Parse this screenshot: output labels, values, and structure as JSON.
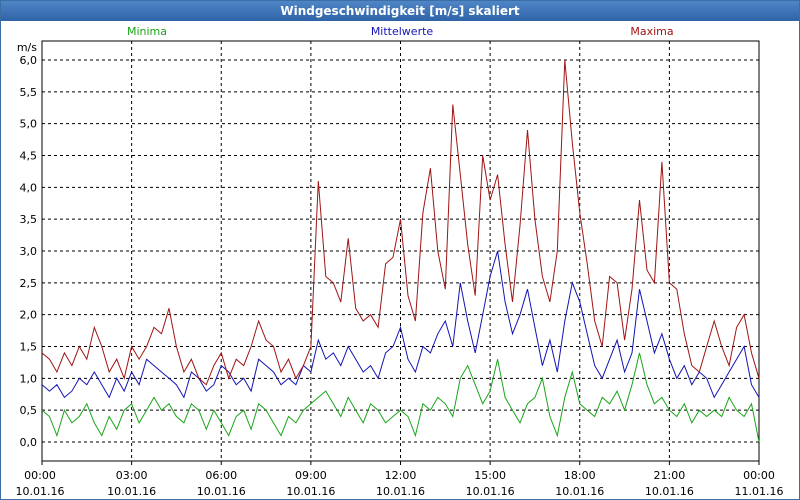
{
  "window": {
    "title": "Windgeschwindigkeit [m/s] skaliert"
  },
  "chart_data": {
    "type": "line",
    "title": "Windgeschwindigkeit [m/s] skaliert",
    "ylabel": "m/s",
    "xlabel": "",
    "ylim": [
      0,
      6
    ],
    "yticks": [
      "0,0",
      "0,5",
      "1,0",
      "1,5",
      "2,0",
      "2,5",
      "3,0",
      "3,5",
      "4,0",
      "4,5",
      "5,0",
      "5,5",
      "6,0"
    ],
    "xticks": [
      {
        "time": "00:00",
        "date": "10.01.16"
      },
      {
        "time": "03:00",
        "date": "10.01.16"
      },
      {
        "time": "06:00",
        "date": "10.01.16"
      },
      {
        "time": "09:00",
        "date": "10.01.16"
      },
      {
        "time": "12:00",
        "date": "10.01.16"
      },
      {
        "time": "15:00",
        "date": "10.01.16"
      },
      {
        "time": "18:00",
        "date": "10.01.16"
      },
      {
        "time": "21:00",
        "date": "10.01.16"
      },
      {
        "time": "00:00",
        "date": "11.01.16"
      }
    ],
    "x_hours": [
      0,
      0.25,
      0.5,
      0.75,
      1,
      1.25,
      1.5,
      1.75,
      2,
      2.25,
      2.5,
      2.75,
      3,
      3.25,
      3.5,
      3.75,
      4,
      4.25,
      4.5,
      4.75,
      5,
      5.25,
      5.5,
      5.75,
      6,
      6.25,
      6.5,
      6.75,
      7,
      7.25,
      7.5,
      7.75,
      8,
      8.25,
      8.5,
      8.75,
      9,
      9.25,
      9.5,
      9.75,
      10,
      10.25,
      10.5,
      10.75,
      11,
      11.25,
      11.5,
      11.75,
      12,
      12.25,
      12.5,
      12.75,
      13,
      13.25,
      13.5,
      13.75,
      14,
      14.25,
      14.5,
      14.75,
      15,
      15.25,
      15.5,
      15.75,
      16,
      16.25,
      16.5,
      16.75,
      17,
      17.25,
      17.5,
      17.75,
      18,
      18.25,
      18.5,
      18.75,
      19,
      19.25,
      19.5,
      19.75,
      20,
      20.25,
      20.5,
      20.75,
      21,
      21.25,
      21.5,
      21.75,
      22,
      22.25,
      22.5,
      22.75,
      23,
      23.25,
      23.5,
      23.75,
      24
    ],
    "series": [
      {
        "name": "Minima",
        "color": "#1aa51a",
        "legend_position": "left",
        "values": [
          0.5,
          0.4,
          0.1,
          0.5,
          0.3,
          0.4,
          0.6,
          0.3,
          0.1,
          0.4,
          0.2,
          0.5,
          0.6,
          0.3,
          0.5,
          0.7,
          0.5,
          0.6,
          0.4,
          0.3,
          0.6,
          0.5,
          0.2,
          0.5,
          0.3,
          0.1,
          0.4,
          0.5,
          0.2,
          0.6,
          0.5,
          0.3,
          0.1,
          0.4,
          0.3,
          0.5,
          0.6,
          0.7,
          0.8,
          0.6,
          0.4,
          0.7,
          0.5,
          0.3,
          0.6,
          0.5,
          0.3,
          0.4,
          0.5,
          0.4,
          0.1,
          0.6,
          0.5,
          0.7,
          0.6,
          0.4,
          1.0,
          1.2,
          0.9,
          0.6,
          0.8,
          1.3,
          0.7,
          0.5,
          0.3,
          0.6,
          0.7,
          1.0,
          0.4,
          0.1,
          0.7,
          1.1,
          0.6,
          0.5,
          0.4,
          0.7,
          0.6,
          0.8,
          0.5,
          0.9,
          1.4,
          0.9,
          0.6,
          0.7,
          0.5,
          0.4,
          0.6,
          0.3,
          0.5,
          0.4,
          0.5,
          0.4,
          0.7,
          0.5,
          0.4,
          0.6,
          0.0
        ]
      },
      {
        "name": "Mittelwerte",
        "color": "#1414b4",
        "legend_position": "center",
        "values": [
          0.9,
          0.8,
          0.9,
          0.7,
          0.8,
          1.0,
          0.9,
          1.1,
          0.9,
          0.7,
          1.0,
          0.8,
          1.1,
          0.9,
          1.3,
          1.2,
          1.1,
          1.0,
          0.9,
          0.7,
          1.1,
          1.0,
          0.8,
          0.9,
          1.2,
          1.1,
          0.9,
          1.0,
          0.8,
          1.3,
          1.2,
          1.1,
          0.9,
          1.0,
          0.9,
          1.2,
          1.1,
          1.6,
          1.3,
          1.4,
          1.2,
          1.5,
          1.3,
          1.1,
          1.2,
          1.0,
          1.4,
          1.5,
          1.8,
          1.3,
          1.1,
          1.5,
          1.4,
          1.7,
          1.9,
          1.5,
          2.5,
          1.9,
          1.4,
          2.0,
          2.6,
          3.0,
          2.2,
          1.7,
          2.0,
          2.4,
          1.8,
          1.2,
          1.6,
          1.1,
          1.9,
          2.5,
          2.2,
          1.7,
          1.2,
          1.0,
          1.3,
          1.6,
          1.1,
          1.4,
          2.4,
          1.9,
          1.4,
          1.7,
          1.3,
          1.0,
          1.2,
          0.9,
          1.1,
          1.0,
          0.7,
          0.9,
          1.1,
          1.3,
          1.5,
          0.9,
          0.7
        ]
      },
      {
        "name": "Maxima",
        "color": "#a01414",
        "legend_position": "right",
        "values": [
          1.4,
          1.3,
          1.1,
          1.4,
          1.2,
          1.5,
          1.3,
          1.8,
          1.5,
          1.1,
          1.3,
          1.0,
          1.5,
          1.3,
          1.5,
          1.8,
          1.7,
          2.1,
          1.5,
          1.1,
          1.3,
          1.0,
          0.9,
          1.2,
          1.4,
          1.0,
          1.3,
          1.2,
          1.5,
          1.9,
          1.6,
          1.5,
          1.1,
          1.3,
          1.0,
          1.2,
          1.5,
          4.1,
          2.6,
          2.5,
          2.2,
          3.2,
          2.1,
          1.9,
          2.0,
          1.8,
          2.8,
          2.9,
          3.5,
          2.3,
          1.9,
          3.6,
          4.3,
          3.0,
          2.4,
          5.3,
          4.2,
          3.1,
          2.3,
          4.5,
          3.8,
          4.2,
          3.1,
          2.2,
          3.4,
          4.9,
          3.5,
          2.6,
          2.2,
          3.0,
          6.0,
          4.7,
          3.6,
          2.8,
          1.9,
          1.5,
          2.6,
          2.5,
          1.6,
          2.4,
          3.8,
          2.7,
          2.5,
          4.4,
          2.5,
          2.4,
          1.7,
          1.2,
          1.1,
          1.5,
          1.9,
          1.5,
          1.2,
          1.8,
          2.0,
          1.4,
          1.0
        ]
      }
    ]
  }
}
